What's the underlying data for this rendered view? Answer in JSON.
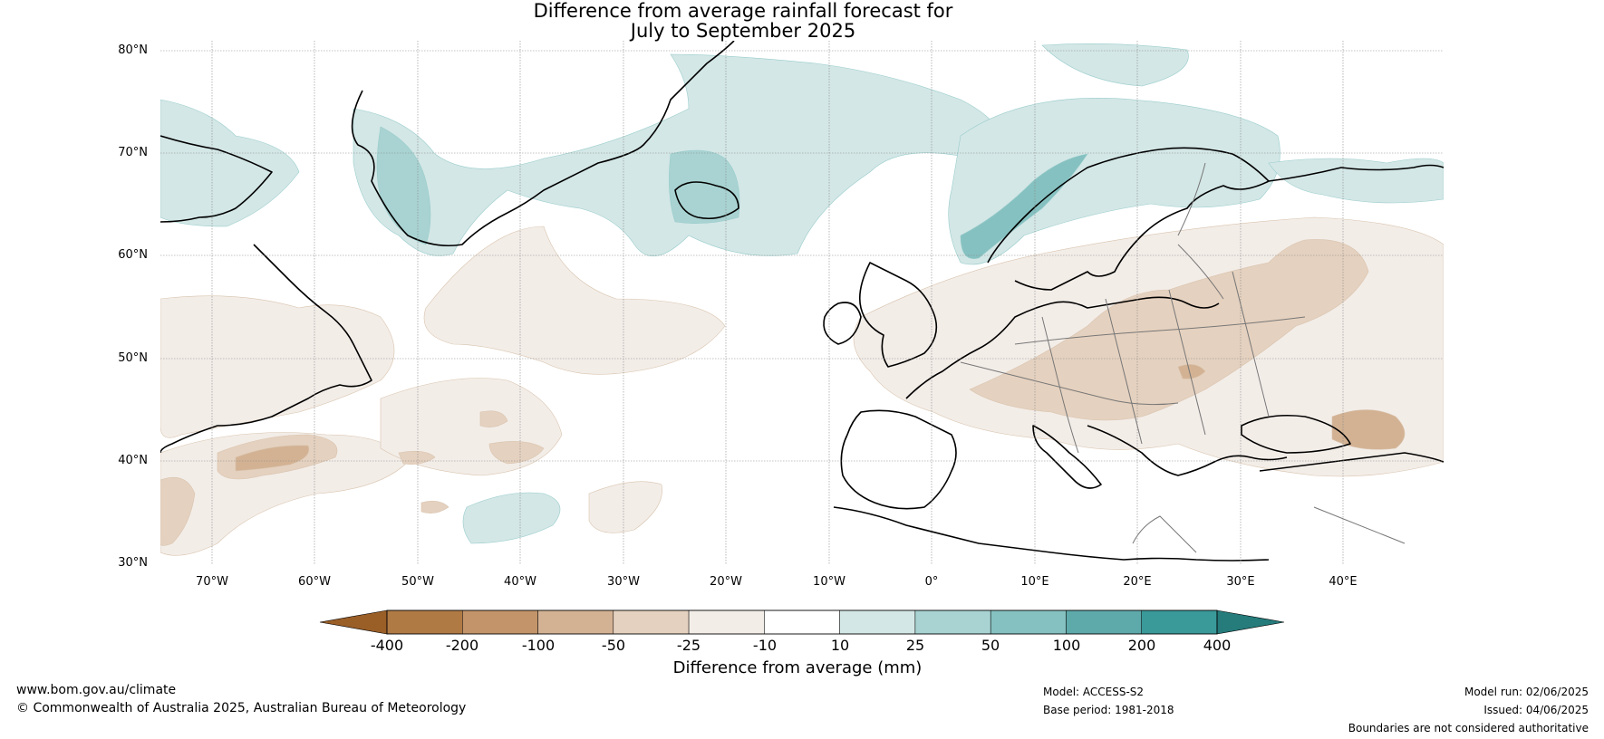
{
  "title": {
    "line1": "Difference from average rainfall forecast for",
    "line2": "July to September 2025"
  },
  "lat_labels": [
    "80°N",
    "70°N",
    "60°N",
    "50°N",
    "40°N",
    "30°N"
  ],
  "lon_labels": [
    "70°W",
    "60°W",
    "50°W",
    "40°W",
    "30°W",
    "20°W",
    "10°W",
    "0°",
    "10°E",
    "20°E",
    "30°E",
    "40°E"
  ],
  "colorbar": {
    "ticks": [
      "-400",
      "-200",
      "-100",
      "-50",
      "-25",
      "-10",
      "10",
      "25",
      "50",
      "100",
      "200",
      "400"
    ],
    "colors": [
      "#9a5e27",
      "#b07a45",
      "#c39469",
      "#d3b293",
      "#e5d1bf",
      "#f3ede8",
      "#ffffff",
      "#d3e7e6",
      "#a8d3d2",
      "#85c1c0",
      "#5ea9aa",
      "#3a9999",
      "#267b7b"
    ],
    "label": "Difference from average (mm)"
  },
  "footer": {
    "website": "www.bom.gov.au/climate",
    "copyright": "© Commonwealth of Australia 2025, Australian Bureau of Meteorology",
    "model": "Model: ACCESS-S2",
    "base_period": "Base period: 1981-2018",
    "model_run": "Model run: 02/06/2025",
    "issued": "Issued: 04/06/2025",
    "disclaimer": "Boundaries are not considered authoritative"
  }
}
